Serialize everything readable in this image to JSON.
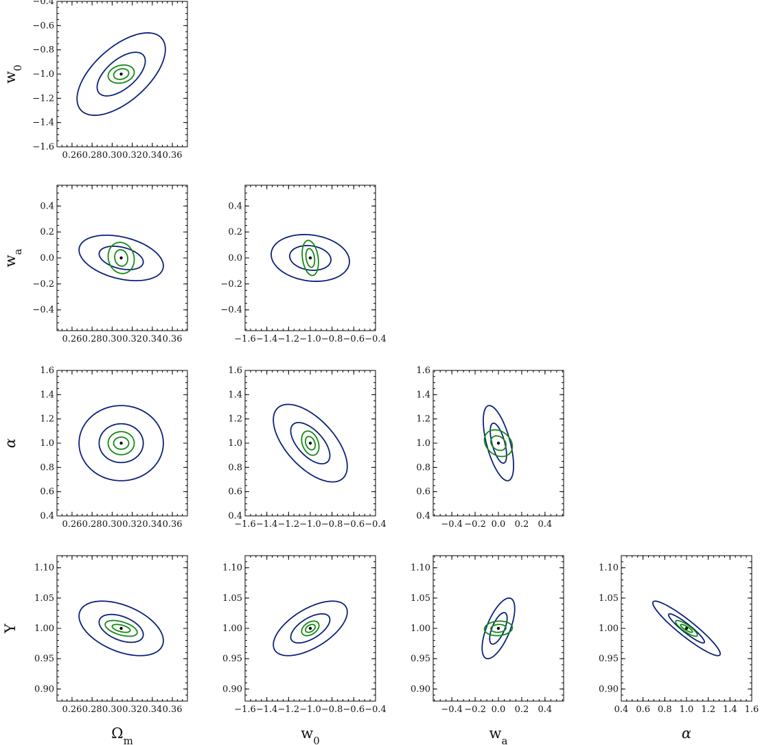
{
  "chart_data": {
    "type": "scatter",
    "title": "",
    "legend": "none",
    "grid": false,
    "colors": {
      "outer_contours": "#0b1f7a",
      "inner_contours": "#118811",
      "fiducial_point": "#000000"
    },
    "parameters": {
      "Om": {
        "label": "Ωm",
        "range": [
          0.245,
          0.375
        ],
        "ticks": [
          0.26,
          0.28,
          0.3,
          0.32,
          0.34,
          0.36
        ],
        "tick_labels": [
          "0.26",
          "0.28",
          "0.30",
          "0.32",
          "0.34",
          "0.36"
        ],
        "minor_step": 0.005
      },
      "w0": {
        "label": "w0",
        "range": [
          -1.6,
          -0.4
        ],
        "ticks": [
          -1.6,
          -1.4,
          -1.2,
          -1.0,
          -0.8,
          -0.6,
          -0.4
        ],
        "tick_labels": [
          "−1.6",
          "−1.4",
          "−1.2",
          "−1.0",
          "−0.8",
          "−0.6",
          "−0.4"
        ],
        "minor_step": 0.05
      },
      "wa": {
        "label": "wa",
        "range": [
          -0.56,
          0.56
        ],
        "ticks": [
          -0.4,
          -0.2,
          0.0,
          0.2,
          0.4
        ],
        "tick_labels": [
          "−0.4",
          "−0.2",
          "0.0",
          "0.2",
          "0.4"
        ],
        "minor_step": 0.05
      },
      "alpha": {
        "label": "α",
        "range": [
          0.4,
          1.6
        ],
        "ticks": [
          0.4,
          0.6,
          0.8,
          1.0,
          1.2,
          1.4,
          1.6
        ],
        "tick_labels": [
          "0.4",
          "0.6",
          "0.8",
          "1.0",
          "1.2",
          "1.4",
          "1.6"
        ],
        "minor_step": 0.05
      },
      "Y": {
        "label": "Y",
        "range": [
          0.88,
          1.12
        ],
        "ticks": [
          0.9,
          0.95,
          1.0,
          1.05,
          1.1
        ],
        "tick_labels": [
          "0.90",
          "0.95",
          "1.00",
          "1.05",
          "1.10"
        ],
        "minor_step": 0.01
      }
    },
    "panels": [
      {
        "x": "Om",
        "y": "w0",
        "row": 0,
        "col": 0,
        "fiducial": [
          0.309,
          -1.0
        ],
        "outer": [
          {
            "rx": 0.044,
            "ry": 0.34,
            "rho": 0.6
          },
          {
            "rx": 0.024,
            "ry": 0.18,
            "rho": 0.6
          }
        ],
        "inner": [
          {
            "rx": 0.013,
            "ry": 0.075,
            "rho": 0.2
          },
          {
            "rx": 0.0075,
            "ry": 0.044,
            "rho": 0.2
          }
        ]
      },
      {
        "x": "Om",
        "y": "wa",
        "row": 1,
        "col": 0,
        "fiducial": [
          0.309,
          0.0
        ],
        "outer": [
          {
            "rx": 0.042,
            "ry": 0.175,
            "rho": -0.35
          },
          {
            "rx": 0.022,
            "ry": 0.09,
            "rho": -0.35
          }
        ],
        "inner": [
          {
            "rx": 0.013,
            "ry": 0.12,
            "rho": -0.1
          },
          {
            "rx": 0.0065,
            "ry": 0.063,
            "rho": -0.1
          }
        ]
      },
      {
        "x": "w0",
        "y": "wa",
        "row": 1,
        "col": 1,
        "fiducial": [
          -1.0,
          0.0
        ],
        "outer": [
          {
            "rx": 0.36,
            "ry": 0.18,
            "rho": -0.15
          },
          {
            "rx": 0.19,
            "ry": 0.095,
            "rho": -0.15
          }
        ],
        "inner": [
          {
            "rx": 0.075,
            "ry": 0.135,
            "rho": -0.25
          },
          {
            "rx": 0.04,
            "ry": 0.072,
            "rho": -0.25
          }
        ]
      },
      {
        "x": "Om",
        "y": "alpha",
        "row": 2,
        "col": 0,
        "fiducial": [
          0.309,
          1.0
        ],
        "outer": [
          {
            "rx": 0.042,
            "ry": 0.31,
            "rho": 0.0
          },
          {
            "rx": 0.022,
            "ry": 0.16,
            "rho": 0.0
          }
        ],
        "inner": [
          {
            "rx": 0.013,
            "ry": 0.095,
            "rho": 0.0
          },
          {
            "rx": 0.0075,
            "ry": 0.05,
            "rho": 0.0
          }
        ]
      },
      {
        "x": "w0",
        "y": "alpha",
        "row": 2,
        "col": 1,
        "fiducial": [
          -1.0,
          1.0
        ],
        "outer": [
          {
            "rx": 0.34,
            "ry": 0.32,
            "rho": -0.6
          },
          {
            "rx": 0.18,
            "ry": 0.17,
            "rho": -0.6
          }
        ],
        "inner": [
          {
            "rx": 0.08,
            "ry": 0.1,
            "rho": -0.3
          },
          {
            "rx": 0.045,
            "ry": 0.055,
            "rho": -0.3
          }
        ]
      },
      {
        "x": "wa",
        "y": "alpha",
        "row": 2,
        "col": 2,
        "fiducial": [
          0.0,
          1.0
        ],
        "outer": [
          {
            "rx": 0.13,
            "ry": 0.31,
            "rho": -0.6
          },
          {
            "rx": 0.07,
            "ry": 0.165,
            "rho": -0.6
          }
        ],
        "inner": [
          {
            "rx": 0.12,
            "ry": 0.11,
            "rho": -0.25
          },
          {
            "rx": 0.065,
            "ry": 0.06,
            "rho": -0.25
          }
        ]
      },
      {
        "x": "Om",
        "y": "Y",
        "row": 3,
        "col": 0,
        "fiducial": [
          0.309,
          1.0
        ],
        "outer": [
          {
            "rx": 0.042,
            "ry": 0.045,
            "rho": -0.45
          },
          {
            "rx": 0.022,
            "ry": 0.023,
            "rho": -0.45
          }
        ],
        "inner": [
          {
            "rx": 0.016,
            "ry": 0.013,
            "rho": -0.5
          },
          {
            "rx": 0.009,
            "ry": 0.0065,
            "rho": -0.5
          }
        ]
      },
      {
        "x": "w0",
        "y": "Y",
        "row": 3,
        "col": 1,
        "fiducial": [
          -1.0,
          1.0
        ],
        "outer": [
          {
            "rx": 0.34,
            "ry": 0.045,
            "rho": 0.6
          },
          {
            "rx": 0.18,
            "ry": 0.024,
            "rho": 0.6
          }
        ],
        "inner": [
          {
            "rx": 0.08,
            "ry": 0.012,
            "rho": 0.4
          },
          {
            "rx": 0.045,
            "ry": 0.0065,
            "rho": 0.4
          }
        ]
      },
      {
        "x": "wa",
        "y": "Y",
        "row": 3,
        "col": 2,
        "fiducial": [
          0.0,
          1.0
        ],
        "outer": [
          {
            "rx": 0.14,
            "ry": 0.05,
            "rho": 0.65
          },
          {
            "rx": 0.075,
            "ry": 0.026,
            "rho": 0.65
          }
        ],
        "inner": [
          {
            "rx": 0.12,
            "ry": 0.012,
            "rho": 0.1
          },
          {
            "rx": 0.065,
            "ry": 0.0065,
            "rho": 0.1
          }
        ]
      },
      {
        "x": "alpha",
        "y": "Y",
        "row": 3,
        "col": 3,
        "fiducial": [
          1.0,
          1.0
        ],
        "outer": [
          {
            "rx": 0.31,
            "ry": 0.045,
            "rho": -0.93
          },
          {
            "rx": 0.165,
            "ry": 0.024,
            "rho": -0.93
          }
        ],
        "inner": [
          {
            "rx": 0.1,
            "ry": 0.013,
            "rho": -0.85
          },
          {
            "rx": 0.055,
            "ry": 0.0065,
            "rho": -0.85
          }
        ]
      }
    ]
  }
}
